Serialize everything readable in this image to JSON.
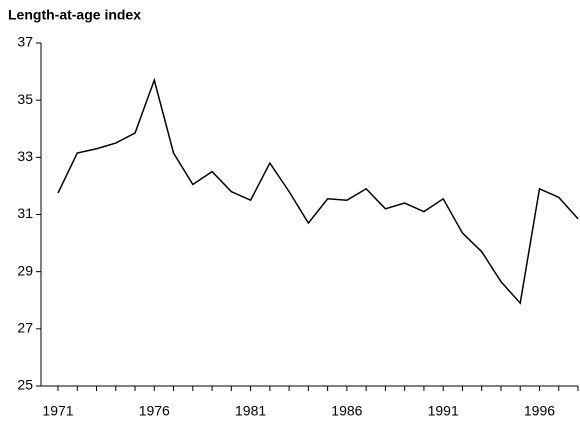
{
  "chart_data": {
    "type": "line",
    "title": "Length-at-age index",
    "categories": [
      "1971",
      null,
      null,
      null,
      null,
      "1976",
      null,
      null,
      null,
      null,
      "1981",
      null,
      null,
      null,
      null,
      "1986",
      null,
      null,
      null,
      null,
      "1991",
      null,
      null,
      null,
      null,
      "1996",
      null,
      null
    ],
    "values": [
      31.75,
      33.15,
      33.3,
      33.5,
      33.85,
      35.7,
      33.15,
      32.05,
      32.5,
      31.8,
      31.5,
      32.8,
      31.8,
      30.7,
      31.55,
      31.5,
      31.9,
      31.2,
      31.4,
      31.1,
      31.55,
      30.35,
      29.7,
      28.65,
      27.9,
      31.9,
      31.6,
      30.85
    ],
    "color": "#000000",
    "ylim": [
      25,
      37
    ],
    "yticks": [
      25,
      27,
      29,
      31,
      33,
      35,
      37
    ],
    "grid": false
  }
}
